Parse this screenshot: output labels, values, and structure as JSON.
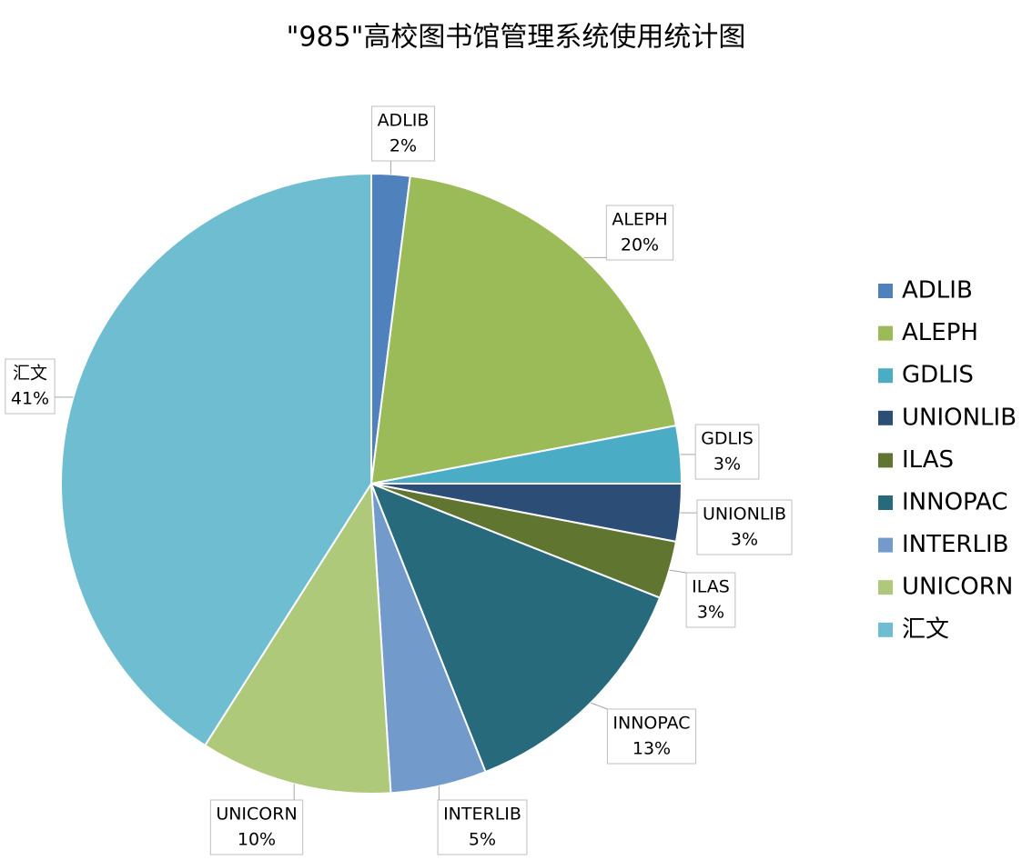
{
  "chart_data": {
    "type": "pie",
    "title": "\"985\"高校图书馆管理系统使用统计图",
    "categories": [
      "ADLIB",
      "ALEPH",
      "GDLIS",
      "UNIONLIB",
      "ILAS",
      "INNOPAC",
      "INTERLIB",
      "UNICORN",
      "汇文"
    ],
    "values": [
      2,
      20,
      3,
      3,
      3,
      13,
      5,
      10,
      41
    ],
    "value_labels": [
      "2%",
      "20%",
      "3%",
      "3%",
      "3%",
      "13%",
      "5%",
      "10%",
      "41%"
    ],
    "colors": [
      "#4f81bd",
      "#9bbb59",
      "#4bacc6",
      "#2c4d75",
      "#5f7530",
      "#276a7c",
      "#729aca",
      "#afc97a",
      "#6fbdd1"
    ],
    "legend": "right"
  }
}
